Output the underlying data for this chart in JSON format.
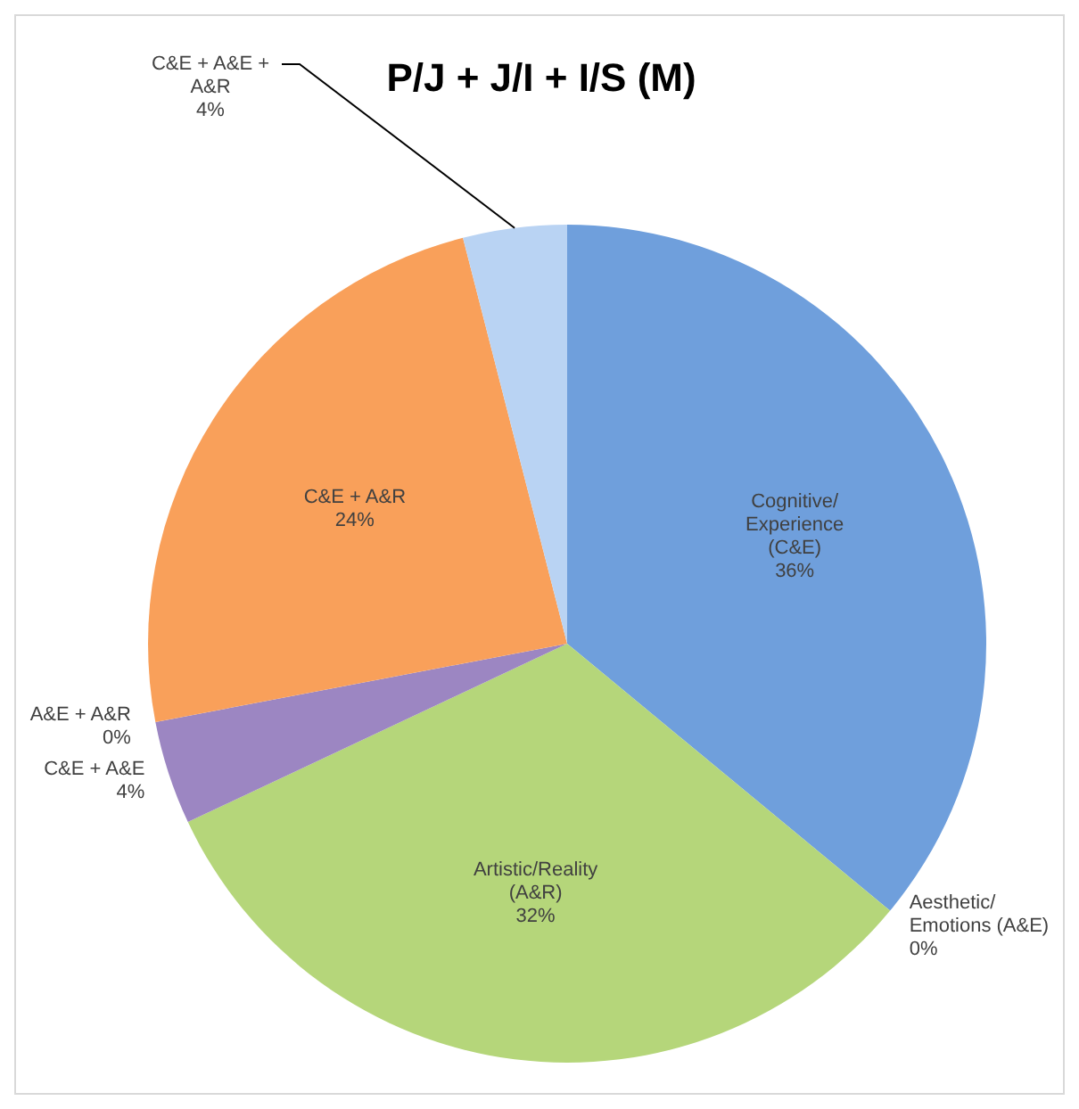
{
  "chart_data": {
    "type": "pie",
    "title": "P/J + J/I + I/S (M)",
    "categories": [
      "Cognitive/ Experience (C&E)",
      "Aesthetic/ Emotions (A&E)",
      "Artistic/Reality (A&R)",
      "C&E + A&E",
      "A&E + A&R",
      "C&E + A&R",
      "C&E + A&E + A&R"
    ],
    "values": [
      36,
      0,
      32,
      4,
      0,
      24,
      4
    ],
    "value_labels": [
      "36%",
      "0%",
      "32%",
      "4%",
      "0%",
      "24%",
      "4%"
    ],
    "colors": [
      "#6f9fdc",
      "#c0504d",
      "#b5d67a",
      "#9c86c2",
      "#4bacc6",
      "#f9a05a",
      "#b9d3f3"
    ]
  }
}
